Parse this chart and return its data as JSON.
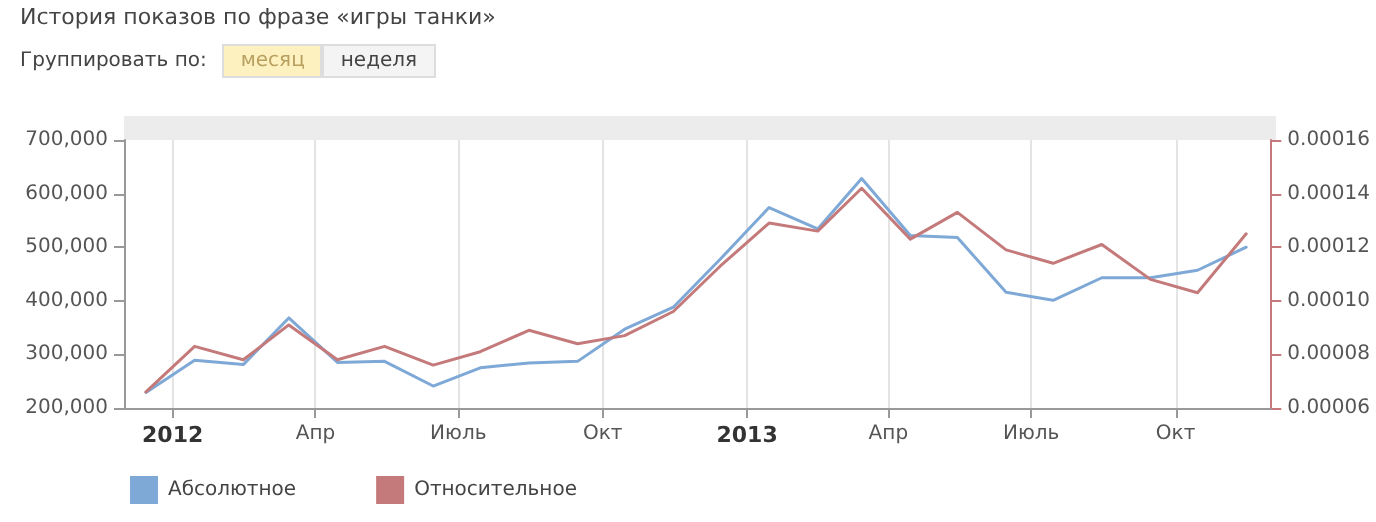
{
  "chart_data": {
    "type": "line",
    "title": "История показов по фразе «игры танки»",
    "annotations": [
      "Группировать по:",
      "месяц",
      "неделя"
    ],
    "x": [
      "2011-12-15",
      "2012-01-15",
      "2012-02-15",
      "2012-03-15",
      "2012-04-15",
      "2012-05-15",
      "2012-06-15",
      "2012-07-15",
      "2012-08-15",
      "2012-09-15",
      "2012-10-15",
      "2012-11-15",
      "2012-12-15",
      "2013-01-15",
      "2013-02-15",
      "2013-03-15",
      "2013-04-15",
      "2013-05-15",
      "2013-06-15",
      "2013-07-15",
      "2013-08-15",
      "2013-09-15",
      "2013-10-15",
      "2013-11-15"
    ],
    "series": [
      {
        "name": "Абсолютное",
        "color": "#7ea8d6",
        "values": [
          229000,
          289000,
          281000,
          368000,
          285000,
          287000,
          241000,
          275000,
          284000,
          287000,
          347000,
          388000,
          478000,
          574000,
          534000,
          628000,
          522000,
          518000,
          416000,
          401000,
          443000,
          443000,
          457000,
          500000
        ]
      },
      {
        "name": "Относительное",
        "color": "#c47a7a",
        "axis": "y2",
        "values": [
          6.6e-05,
          8.3e-05,
          7.8e-05,
          9.1e-05,
          7.8e-05,
          8.3e-05,
          7.6e-05,
          8.1e-05,
          8.9e-05,
          8.4e-05,
          8.7e-05,
          9.6e-05,
          0.000113,
          0.000129,
          0.000126,
          0.000142,
          0.000123,
          0.000133,
          0.000119,
          0.000114,
          0.000121,
          0.000108,
          0.000103,
          0.000125
        ]
      }
    ],
    "xlim": [
      "2011-12-01",
      "2013-12-01"
    ],
    "xticks": [
      {
        "value": "2012-01-01",
        "label": "2012"
      },
      {
        "value": "2012-04-01",
        "label": "Апр"
      },
      {
        "value": "2012-07-01",
        "label": "Июль"
      },
      {
        "value": "2012-10-01",
        "label": "Окт"
      },
      {
        "value": "2013-01-01",
        "label": "2013"
      },
      {
        "value": "2013-04-01",
        "label": "Апр"
      },
      {
        "value": "2013-07-01",
        "label": "Июль"
      },
      {
        "value": "2013-10-01",
        "label": "Окт"
      }
    ],
    "ylim": [
      200000,
      700000
    ],
    "yticks": [
      {
        "value": 200000,
        "label": "200,000"
      },
      {
        "value": 300000,
        "label": "300,000"
      },
      {
        "value": 400000,
        "label": "400,000"
      },
      {
        "value": 500000,
        "label": "500,000"
      },
      {
        "value": 600000,
        "label": "600,000"
      },
      {
        "value": 700000,
        "label": "700,000"
      }
    ],
    "y2lim": [
      6e-05,
      0.00016
    ],
    "y2ticks": [
      {
        "value": 6e-05,
        "label": "0.00006"
      },
      {
        "value": 8e-05,
        "label": "0.00008"
      },
      {
        "value": 0.0001,
        "label": "0.00010"
      },
      {
        "value": 0.00012,
        "label": "0.00012"
      },
      {
        "value": 0.00014,
        "label": "0.00014"
      },
      {
        "value": 0.00016,
        "label": "0.00016"
      }
    ],
    "grid": "x",
    "legend": "bottom left",
    "marker": "none",
    "line_style": "solid"
  }
}
